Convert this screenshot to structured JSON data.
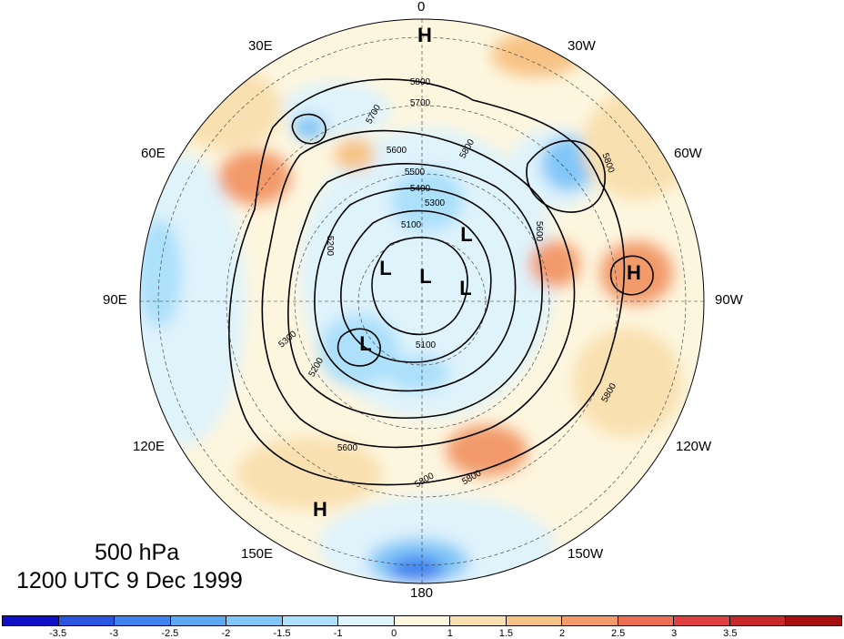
{
  "figure": {
    "title": "500 hPa",
    "subtitle": "1200 UTC 9 Dec 1999"
  },
  "map": {
    "projection": "north polar stereographic",
    "longitude_labels": [
      "0",
      "30W",
      "60W",
      "90W",
      "120W",
      "150W",
      "180",
      "150E",
      "120E",
      "90E",
      "60E",
      "30E"
    ],
    "pressure_centers": [
      "H",
      "H",
      "H",
      "L",
      "L",
      "L",
      "L",
      "L"
    ],
    "contour_labels": [
      "5800",
      "5700",
      "5600",
      "5500",
      "5400",
      "5300",
      "5200",
      "5100",
      "5800",
      "5700",
      "5600",
      "5800",
      "5800",
      "5800",
      "5800",
      "5600",
      "5300",
      "5200",
      "5100"
    ],
    "colors": {
      "background": "#ffffff",
      "contour": "#000000",
      "neutral_pos": "#fdf6df",
      "neutral_neg": "#dff3fb"
    }
  },
  "colorbar": {
    "tick_labels": [
      "-3.5",
      "-3",
      "-2.5",
      "-2",
      "-1.5",
      "-1",
      "0",
      "1",
      "1.5",
      "2",
      "2.5",
      "3",
      "3.5"
    ],
    "colors": [
      "#1010c8",
      "#2a55e0",
      "#3f83ee",
      "#5ba8f3",
      "#80c6f7",
      "#ace0fb",
      "#dff4fd",
      "#fdf7e0",
      "#f9e0b0",
      "#f7c385",
      "#f29a6a",
      "#ec6f55",
      "#e04040",
      "#c82828",
      "#a81010"
    ]
  }
}
